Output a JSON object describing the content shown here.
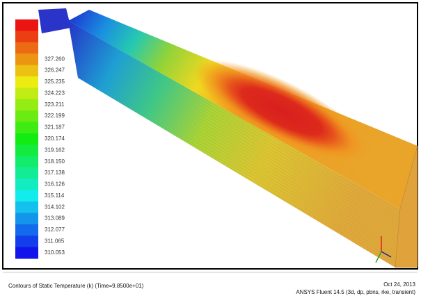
{
  "legend": {
    "labels": [
      "327.260",
      "326.247",
      "325.235",
      "324.223",
      "323.211",
      "322.199",
      "321.187",
      "320.174",
      "319.162",
      "318.150",
      "317.138",
      "316.126",
      "315.114",
      "314.102",
      "313.089",
      "312.077",
      "311.065",
      "310.053"
    ]
  },
  "footer": {
    "left": "Contours of Static Temperature (k)  (Time=9.8500e+01)",
    "date": "Oct 24, 2013",
    "version": "ANSYS Fluent 14.5 (3d, dp, pbns, rke, transient)"
  }
}
